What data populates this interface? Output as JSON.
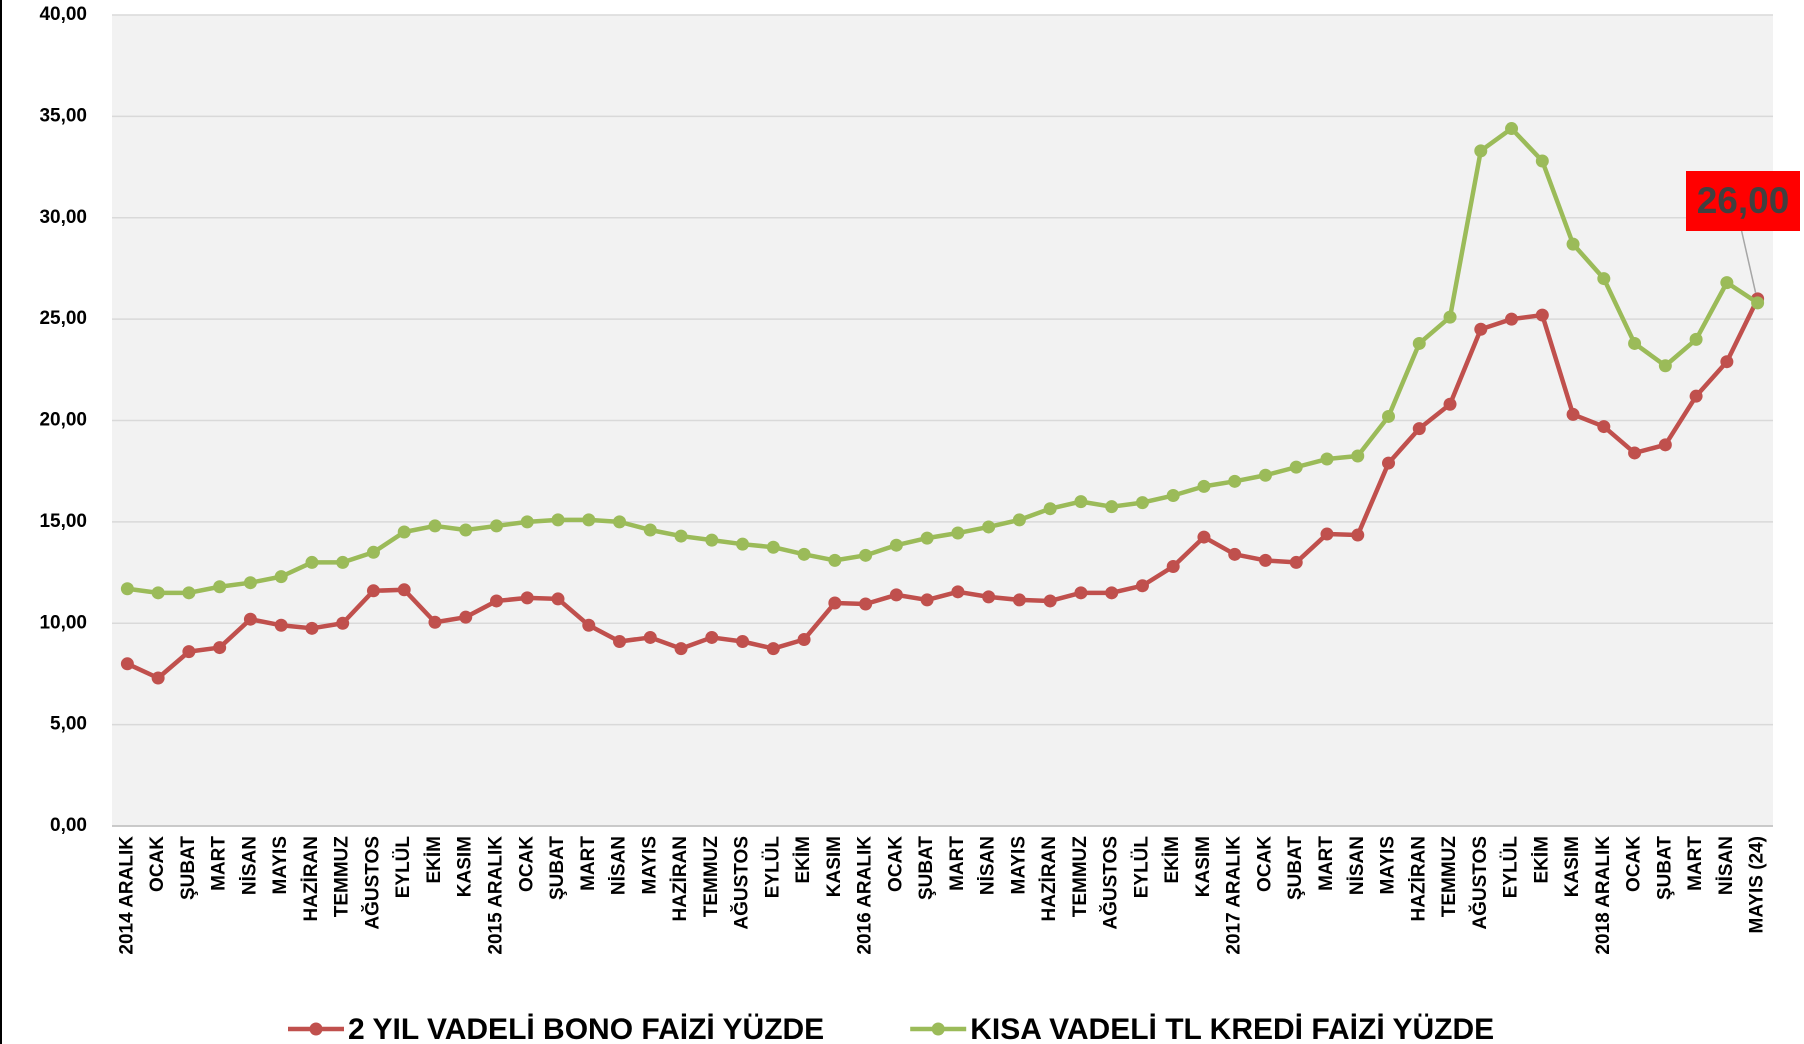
{
  "chart_data": {
    "type": "line",
    "categories": [
      "2014 ARALIK",
      "OCAK",
      "ŞUBAT",
      "MART",
      "NİSAN",
      "MAYIS",
      "HAZİRAN",
      "TEMMUZ",
      "AĞUSTOS",
      "EYLÜL",
      "EKİM",
      "KASIM",
      "2015 ARALIK",
      "OCAK",
      "ŞUBAT",
      "MART",
      "NİSAN",
      "MAYIS",
      "HAZİRAN",
      "TEMMUZ",
      "AĞUSTOS",
      "EYLÜL",
      "EKİM",
      "KASIM",
      "2016 ARALIK",
      "OCAK",
      "ŞUBAT",
      "MART",
      "NİSAN",
      "MAYIS",
      "HAZİRAN",
      "TEMMUZ",
      "AĞUSTOS",
      "EYLÜL",
      "EKİM",
      "KASIM",
      "2017 ARALIK",
      "OCAK",
      "ŞUBAT",
      "MART",
      "NİSAN",
      "MAYIS",
      "HAZİRAN",
      "TEMMUZ",
      "AĞUSTOS",
      "EYLÜL",
      "EKİM",
      "KASIM",
      "2018 ARALIK",
      "OCAK",
      "ŞUBAT",
      "MART",
      "NİSAN",
      "MAYIS (24)"
    ],
    "series": [
      {
        "name": "2 YIL VADELİ BONO FAİZİ YÜZDE",
        "color": "#c0504d",
        "values": [
          8.0,
          7.3,
          8.6,
          8.8,
          10.2,
          9.9,
          9.75,
          10.0,
          11.6,
          11.65,
          10.05,
          10.3,
          11.1,
          11.25,
          11.2,
          9.9,
          9.1,
          9.3,
          8.75,
          9.3,
          9.1,
          8.75,
          9.2,
          11.0,
          10.95,
          11.4,
          11.15,
          11.55,
          11.3,
          11.15,
          11.1,
          11.5,
          11.5,
          11.85,
          12.8,
          14.25,
          13.4,
          13.1,
          13.0,
          14.4,
          14.35,
          17.9,
          19.6,
          20.8,
          24.5,
          25.0,
          25.2,
          20.3,
          19.7,
          18.4,
          18.8,
          21.2,
          22.9,
          26.0
        ],
        "value_labels": [
          null,
          null,
          null,
          null,
          null,
          null,
          null,
          null,
          null,
          null,
          null,
          null,
          null,
          null,
          null,
          null,
          null,
          null,
          null,
          null,
          null,
          null,
          null,
          null,
          null,
          null,
          null,
          null,
          null,
          null,
          null,
          null,
          null,
          null,
          null,
          null,
          null,
          null,
          null,
          null,
          null,
          null,
          null,
          null,
          null,
          null,
          null,
          null,
          null,
          null,
          null,
          null,
          null,
          "26,00"
        ]
      },
      {
        "name": "KISA VADELİ TL KREDİ FAİZİ YÜZDE",
        "color": "#9bbb59",
        "values": [
          11.7,
          11.5,
          11.5,
          11.8,
          12.0,
          12.3,
          13.0,
          13.0,
          13.5,
          14.5,
          14.8,
          14.6,
          14.8,
          15.0,
          15.1,
          15.1,
          15.0,
          14.6,
          14.3,
          14.1,
          13.9,
          13.75,
          13.4,
          13.1,
          13.35,
          13.85,
          14.2,
          14.45,
          14.75,
          15.1,
          15.65,
          16.0,
          15.75,
          15.95,
          16.3,
          16.75,
          17.0,
          17.3,
          17.7,
          18.1,
          18.25,
          20.2,
          23.8,
          25.1,
          33.3,
          34.4,
          32.8,
          28.7,
          27.0,
          23.8,
          22.7,
          24.0,
          26.8,
          25.8
        ]
      }
    ],
    "ylim": [
      0,
      40
    ],
    "yticks": [
      {
        "value": 0,
        "label": "0,00"
      },
      {
        "value": 5,
        "label": "5,00"
      },
      {
        "value": 10,
        "label": "10,00"
      },
      {
        "value": 15,
        "label": "15,00"
      },
      {
        "value": 20,
        "label": "20,00"
      },
      {
        "value": 25,
        "label": "25,00"
      },
      {
        "value": 30,
        "label": "30,00"
      },
      {
        "value": 35,
        "label": "35,00"
      },
      {
        "value": 40,
        "label": "40,00"
      }
    ],
    "grid": true,
    "legend": "bottom"
  }
}
